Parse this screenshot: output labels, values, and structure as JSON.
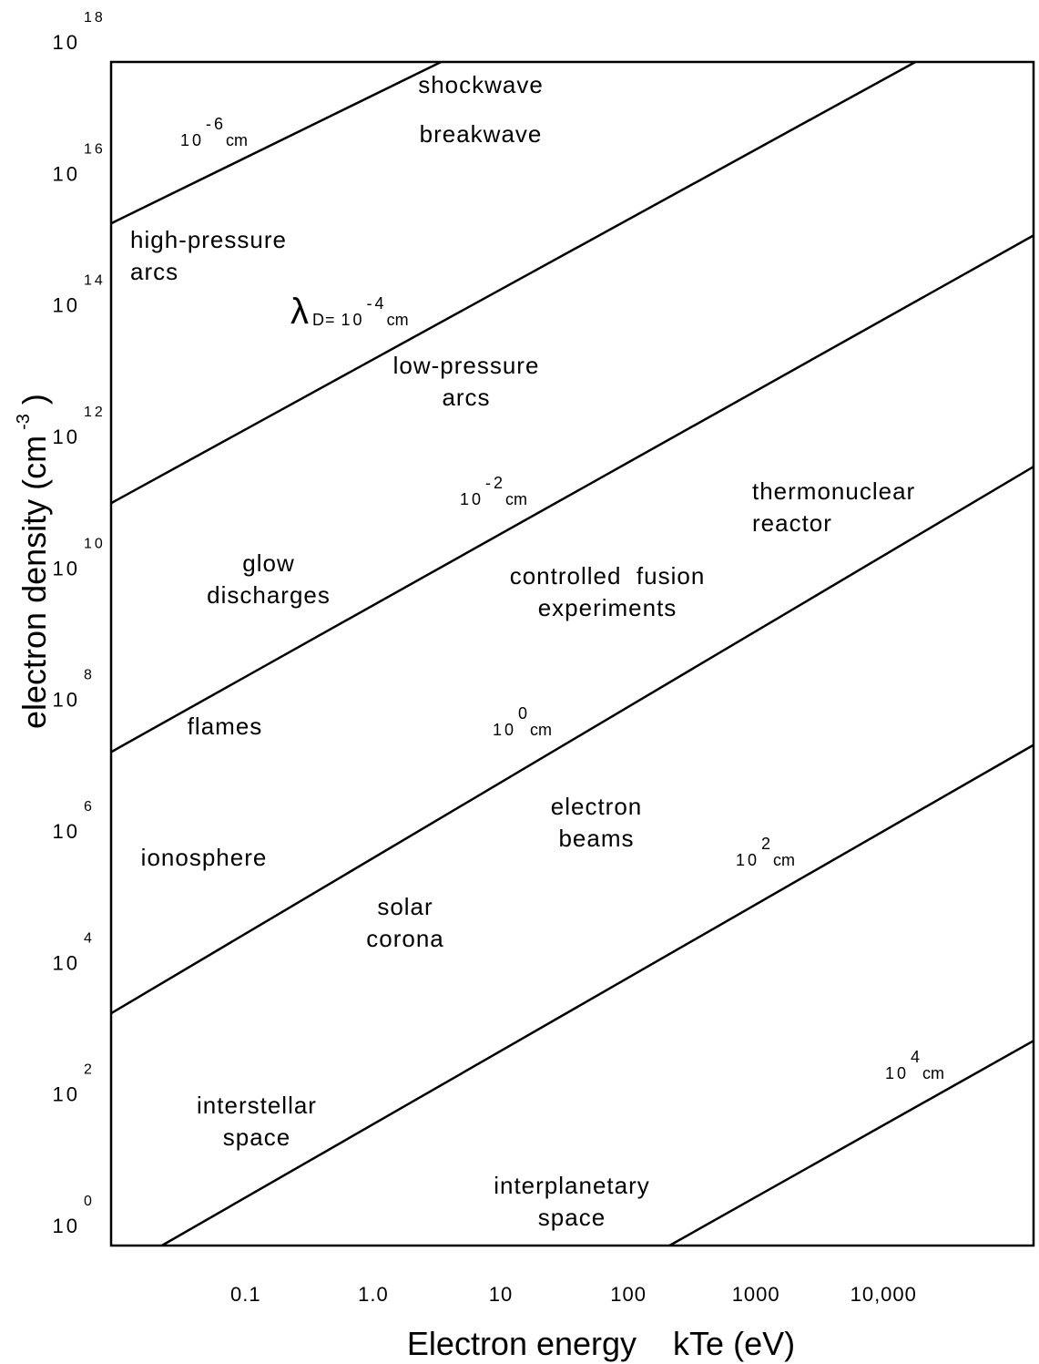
{
  "chart_data": {
    "type": "line",
    "xlabel": "Electron energy    kTe (eV)",
    "ylabel": {
      "text": "electron density (cm",
      "exp": "-3",
      "close": ")"
    },
    "xscale": "log",
    "yscale": "log",
    "xlim": [
      0.0088,
      150000
    ],
    "ylim": [
      1,
      1e+18
    ],
    "xticks": [
      {
        "value": 0.1,
        "label": "0.1"
      },
      {
        "value": 1,
        "label": "1.0"
      },
      10,
      100,
      1000,
      {
        "value": 10000,
        "label": "10,000"
      }
    ],
    "yticks": [
      {
        "value": 1,
        "label": "10",
        "exp": "0"
      },
      {
        "value": 100,
        "label": "10",
        "exp": "2"
      },
      {
        "value": 10000,
        "label": "10",
        "exp": "4"
      },
      {
        "value": 1000000,
        "label": "10",
        "exp": "6"
      },
      {
        "value": 100000000,
        "label": "10",
        "exp": "8"
      },
      {
        "value": 10000000000,
        "label": "10",
        "exp": "10"
      },
      {
        "value": 1000000000000,
        "label": "10",
        "exp": "12"
      },
      {
        "value": 100000000000000,
        "label": "10",
        "exp": "14"
      },
      {
        "value": 10000000000000000,
        "label": "10",
        "exp": "16"
      },
      {
        "value": 1000000000000000000,
        "label": "10",
        "exp": "18"
      }
    ],
    "series": [
      {
        "color": "#000000",
        "x": [
          0.0088,
          3.4
        ],
        "values": [
          3500000000000000.0,
          1e+18
        ]
      },
      {
        "color": "#000000",
        "x": [
          0.0088,
          17800
        ],
        "values": [
          195000000000.0,
          1e+18
        ]
      },
      {
        "color": "#000000",
        "x": [
          0.0088,
          150000
        ],
        "values": [
          32000000.0,
          2300000000000000.0
        ]
      },
      {
        "color": "#000000",
        "x": [
          0.0088,
          150000
        ],
        "values": [
          3400,
          700000000000.0
        ]
      },
      {
        "color": "#000000",
        "x": [
          0.022,
          150000
        ],
        "values": [
          1,
          41000000.0
        ]
      },
      {
        "color": "#000000",
        "x": [
          210,
          150000
        ],
        "values": [
          1,
          1300
        ]
      }
    ],
    "line_labels": [
      {
        "text": "10",
        "exp": "-6",
        "unit": "cm"
      },
      {
        "symbol": "λ",
        "sub": "D=",
        "text": "10",
        "exp": "-4",
        "unit": "cm"
      },
      {
        "text": "10",
        "exp": "-2",
        "unit": "cm"
      },
      {
        "text": "10",
        "exp": "0",
        "unit": "cm"
      },
      {
        "text": "10",
        "exp": "2",
        "unit": "cm"
      },
      {
        "text": "10",
        "exp": "4",
        "unit": "cm"
      }
    ],
    "region_labels": [
      [
        "shockwave"
      ],
      [
        "breakwave"
      ],
      [
        "high-pressure",
        "arcs"
      ],
      [
        "low-pressure",
        "arcs"
      ],
      [
        "thermonuclear",
        "reactor"
      ],
      [
        "glow",
        "discharges"
      ],
      [
        "controlled  fusion",
        "experiments"
      ],
      [
        "flames"
      ],
      [
        "ionosphere"
      ],
      [
        "electron",
        "beams"
      ],
      [
        "solar",
        "corona"
      ],
      [
        "interstellar",
        "space"
      ],
      [
        "interplanetary",
        "space"
      ]
    ]
  }
}
